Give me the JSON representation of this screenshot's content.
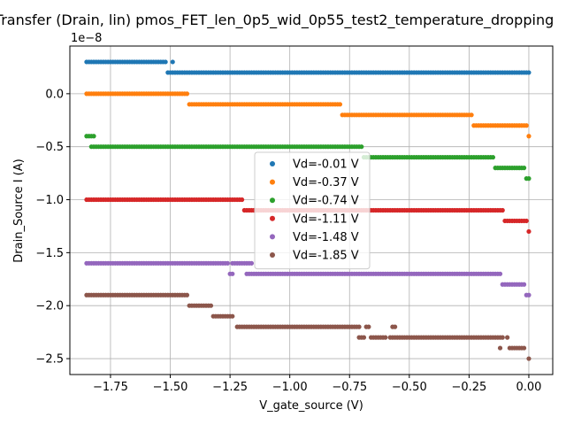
{
  "chart_data": {
    "type": "scatter",
    "title": "Transfer (Drain, lin) pmos_FET_len_0p5_wid_0p55_test2_temperature_dropping",
    "xlabel": "V_gate_source (V)",
    "ylabel": "Drain_Source I (A)",
    "y_offset_text": "1e−8",
    "y_scale": 1e-08,
    "xlim": [
      -1.92,
      0.1
    ],
    "ylim": [
      -2.65,
      0.45
    ],
    "grid": true,
    "legend_position": "center",
    "x_ticks": [
      -1.75,
      -1.5,
      -1.25,
      -1.0,
      -0.75,
      -0.5,
      -0.25,
      0.0
    ],
    "x_tick_labels": [
      "−1.75",
      "−1.50",
      "−1.25",
      "−1.00",
      "−0.75",
      "−0.50",
      "−0.25",
      "0.00"
    ],
    "y_ticks": [
      -2.5,
      -2.0,
      -1.5,
      -1.0,
      -0.5,
      0.0
    ],
    "y_tick_labels": [
      "−2.5",
      "−2.0",
      "−1.5",
      "−1.0",
      "−0.5",
      "0.0"
    ],
    "series": [
      {
        "name": "Vd=-0.01 V",
        "color": "#1f77b4",
        "segments": [
          {
            "x": [
              -1.85,
              -1.52
            ],
            "y": 0.3
          },
          {
            "x": [
              -1.49,
              -1.49
            ],
            "y": 0.3
          },
          {
            "x": [
              -1.51,
              0.0
            ],
            "y": 0.2
          }
        ]
      },
      {
        "name": "Vd=-0.37 V",
        "color": "#ff7f0e",
        "segments": [
          {
            "x": [
              -1.85,
              -1.43
            ],
            "y": 0.0
          },
          {
            "x": [
              -1.42,
              -0.79
            ],
            "y": -0.1
          },
          {
            "x": [
              -0.78,
              -0.24
            ],
            "y": -0.2
          },
          {
            "x": [
              -0.23,
              -0.01
            ],
            "y": -0.3
          },
          {
            "x": [
              0.0,
              0.0
            ],
            "y": -0.4
          }
        ]
      },
      {
        "name": "Vd=-0.74 V",
        "color": "#2ca02c",
        "segments": [
          {
            "x": [
              -1.85,
              -1.82
            ],
            "y": -0.4
          },
          {
            "x": [
              -1.83,
              -0.7
            ],
            "y": -0.5
          },
          {
            "x": [
              -0.69,
              -0.15
            ],
            "y": -0.6
          },
          {
            "x": [
              -0.14,
              -0.02
            ],
            "y": -0.7
          },
          {
            "x": [
              -0.01,
              0.0
            ],
            "y": -0.8
          }
        ]
      },
      {
        "name": "Vd=-1.11 V",
        "color": "#d62728",
        "segments": [
          {
            "x": [
              -1.85,
              -1.2
            ],
            "y": -1.0
          },
          {
            "x": [
              -1.19,
              -0.11
            ],
            "y": -1.1
          },
          {
            "x": [
              -0.1,
              -0.01
            ],
            "y": -1.2
          },
          {
            "x": [
              0.0,
              0.0
            ],
            "y": -1.3
          }
        ]
      },
      {
        "name": "Vd=-1.48 V",
        "color": "#9467bd",
        "segments": [
          {
            "x": [
              -1.85,
              -1.26
            ],
            "y": -1.6
          },
          {
            "x": [
              -1.24,
              -1.16
            ],
            "y": -1.6
          },
          {
            "x": [
              -1.25,
              -1.24
            ],
            "y": -1.7
          },
          {
            "x": [
              -1.18,
              -0.12
            ],
            "y": -1.7
          },
          {
            "x": [
              -0.11,
              -0.02
            ],
            "y": -1.8
          },
          {
            "x": [
              -0.01,
              0.0
            ],
            "y": -1.9
          }
        ]
      },
      {
        "name": "Vd=-1.85 V",
        "color": "#8c564b",
        "segments": [
          {
            "x": [
              -1.85,
              -1.43
            ],
            "y": -1.9
          },
          {
            "x": [
              -1.42,
              -1.33
            ],
            "y": -2.0
          },
          {
            "x": [
              -1.32,
              -1.24
            ],
            "y": -2.1
          },
          {
            "x": [
              -1.22,
              -0.71
            ],
            "y": -2.2
          },
          {
            "x": [
              -0.68,
              -0.67
            ],
            "y": -2.2
          },
          {
            "x": [
              -0.57,
              -0.56
            ],
            "y": -2.2
          },
          {
            "x": [
              -0.71,
              -0.69
            ],
            "y": -2.3
          },
          {
            "x": [
              -0.66,
              -0.6
            ],
            "y": -2.3
          },
          {
            "x": [
              -0.58,
              -0.11
            ],
            "y": -2.3
          },
          {
            "x": [
              -0.09,
              -0.09
            ],
            "y": -2.3
          },
          {
            "x": [
              -0.12,
              -0.12
            ],
            "y": -2.4
          },
          {
            "x": [
              -0.08,
              -0.02
            ],
            "y": -2.4
          },
          {
            "x": [
              0.0,
              0.0
            ],
            "y": -2.5
          }
        ]
      }
    ]
  }
}
